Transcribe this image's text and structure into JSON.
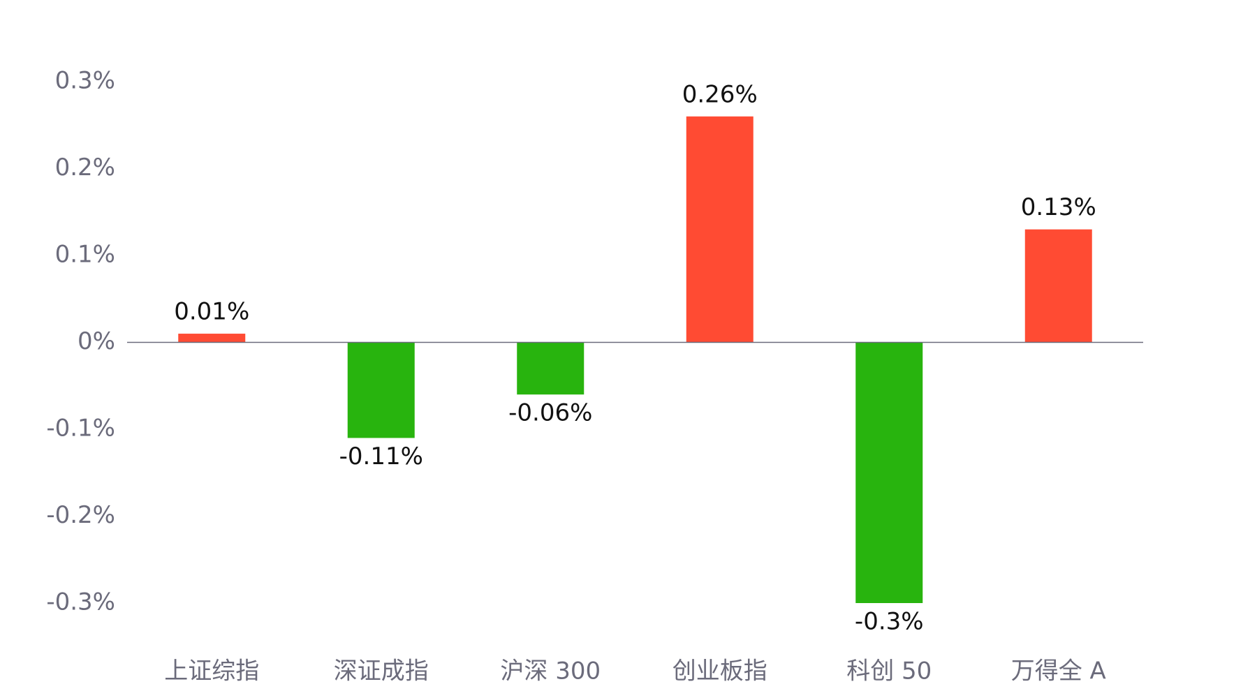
{
  "chart_data": {
    "type": "bar",
    "categories": [
      "上证综指",
      "深证成指",
      "沪深 300",
      "创业板指",
      "科创 50",
      "万得全 A"
    ],
    "values": [
      0.01,
      -0.11,
      -0.06,
      0.26,
      -0.3,
      0.13
    ],
    "value_labels": [
      "0.01%",
      "-0.11%",
      "-0.06%",
      "0.26%",
      "-0.3%",
      "0.13%"
    ],
    "colors": [
      "#ff4b33",
      "#28b40e",
      "#28b40e",
      "#ff4b33",
      "#28b40e",
      "#ff4b33"
    ],
    "ylim": [
      -0.3,
      0.3
    ],
    "yticks": [
      {
        "value": 0.3,
        "label": "0.3%"
      },
      {
        "value": 0.2,
        "label": "0.2%"
      },
      {
        "value": 0.1,
        "label": "0.1%"
      },
      {
        "value": 0,
        "label": "0%"
      },
      {
        "value": -0.1,
        "label": "-0.1%"
      },
      {
        "value": -0.2,
        "label": "-0.2%"
      },
      {
        "value": -0.3,
        "label": "-0.3%"
      }
    ],
    "grid": false
  }
}
